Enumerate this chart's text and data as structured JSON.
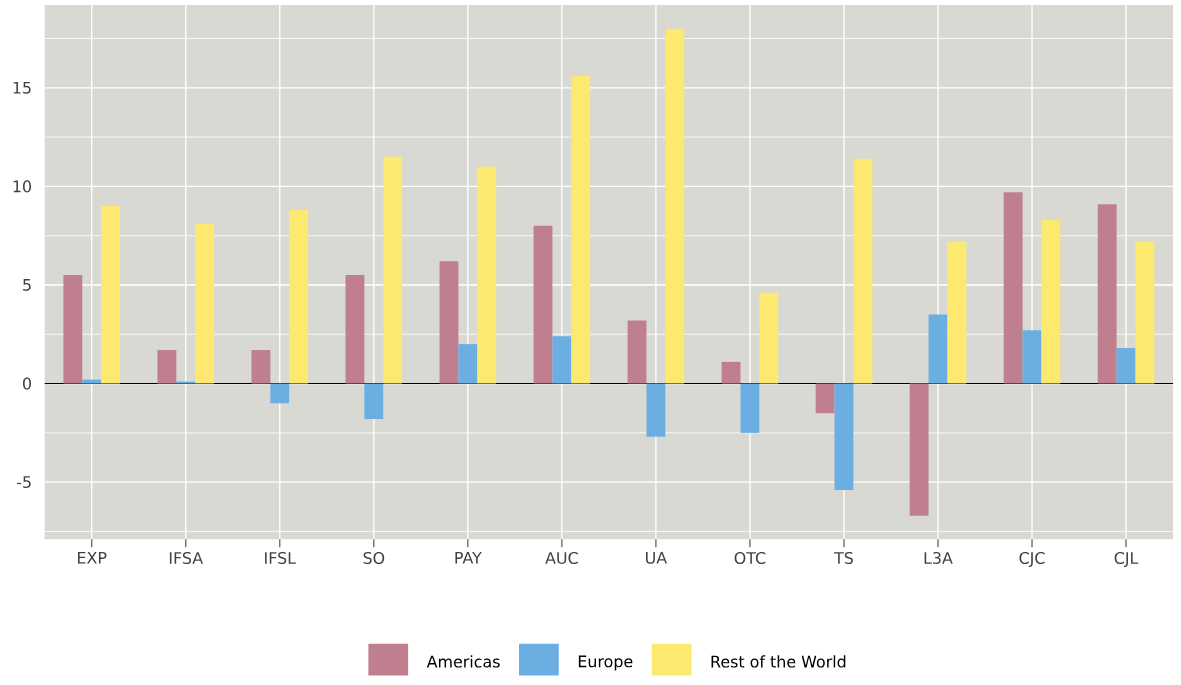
{
  "chart_data": {
    "type": "bar",
    "categories": [
      "EXP",
      "IFSA",
      "IFSL",
      "SO",
      "PAY",
      "AUC",
      "UA",
      "OTC",
      "TS",
      "L3A",
      "CJC",
      "CJL"
    ],
    "series": [
      {
        "name": "Americas",
        "color": "#c07f8e",
        "values": [
          5.5,
          1.7,
          1.7,
          5.5,
          6.2,
          8.0,
          3.2,
          1.1,
          -1.5,
          -6.7,
          9.7,
          9.1
        ]
      },
      {
        "name": "Europe",
        "color": "#6aaee2",
        "values": [
          0.2,
          0.1,
          -1.0,
          -1.8,
          2.0,
          2.4,
          -2.7,
          -2.5,
          -5.4,
          3.5,
          2.7,
          1.8
        ]
      },
      {
        "name": "Rest of the World",
        "color": "#fde870",
        "values": [
          9.0,
          8.1,
          8.8,
          11.5,
          11.0,
          15.6,
          18.0,
          4.6,
          11.4,
          7.2,
          8.3,
          7.2
        ]
      }
    ],
    "ylim": [
      -7.9,
      19.2
    ],
    "yticks": [
      -5,
      0,
      5,
      10,
      15
    ],
    "grid": true,
    "legend": "bottom",
    "ref_lines": [
      {
        "axis": "y",
        "value": 0,
        "color": "#000000"
      }
    ]
  }
}
